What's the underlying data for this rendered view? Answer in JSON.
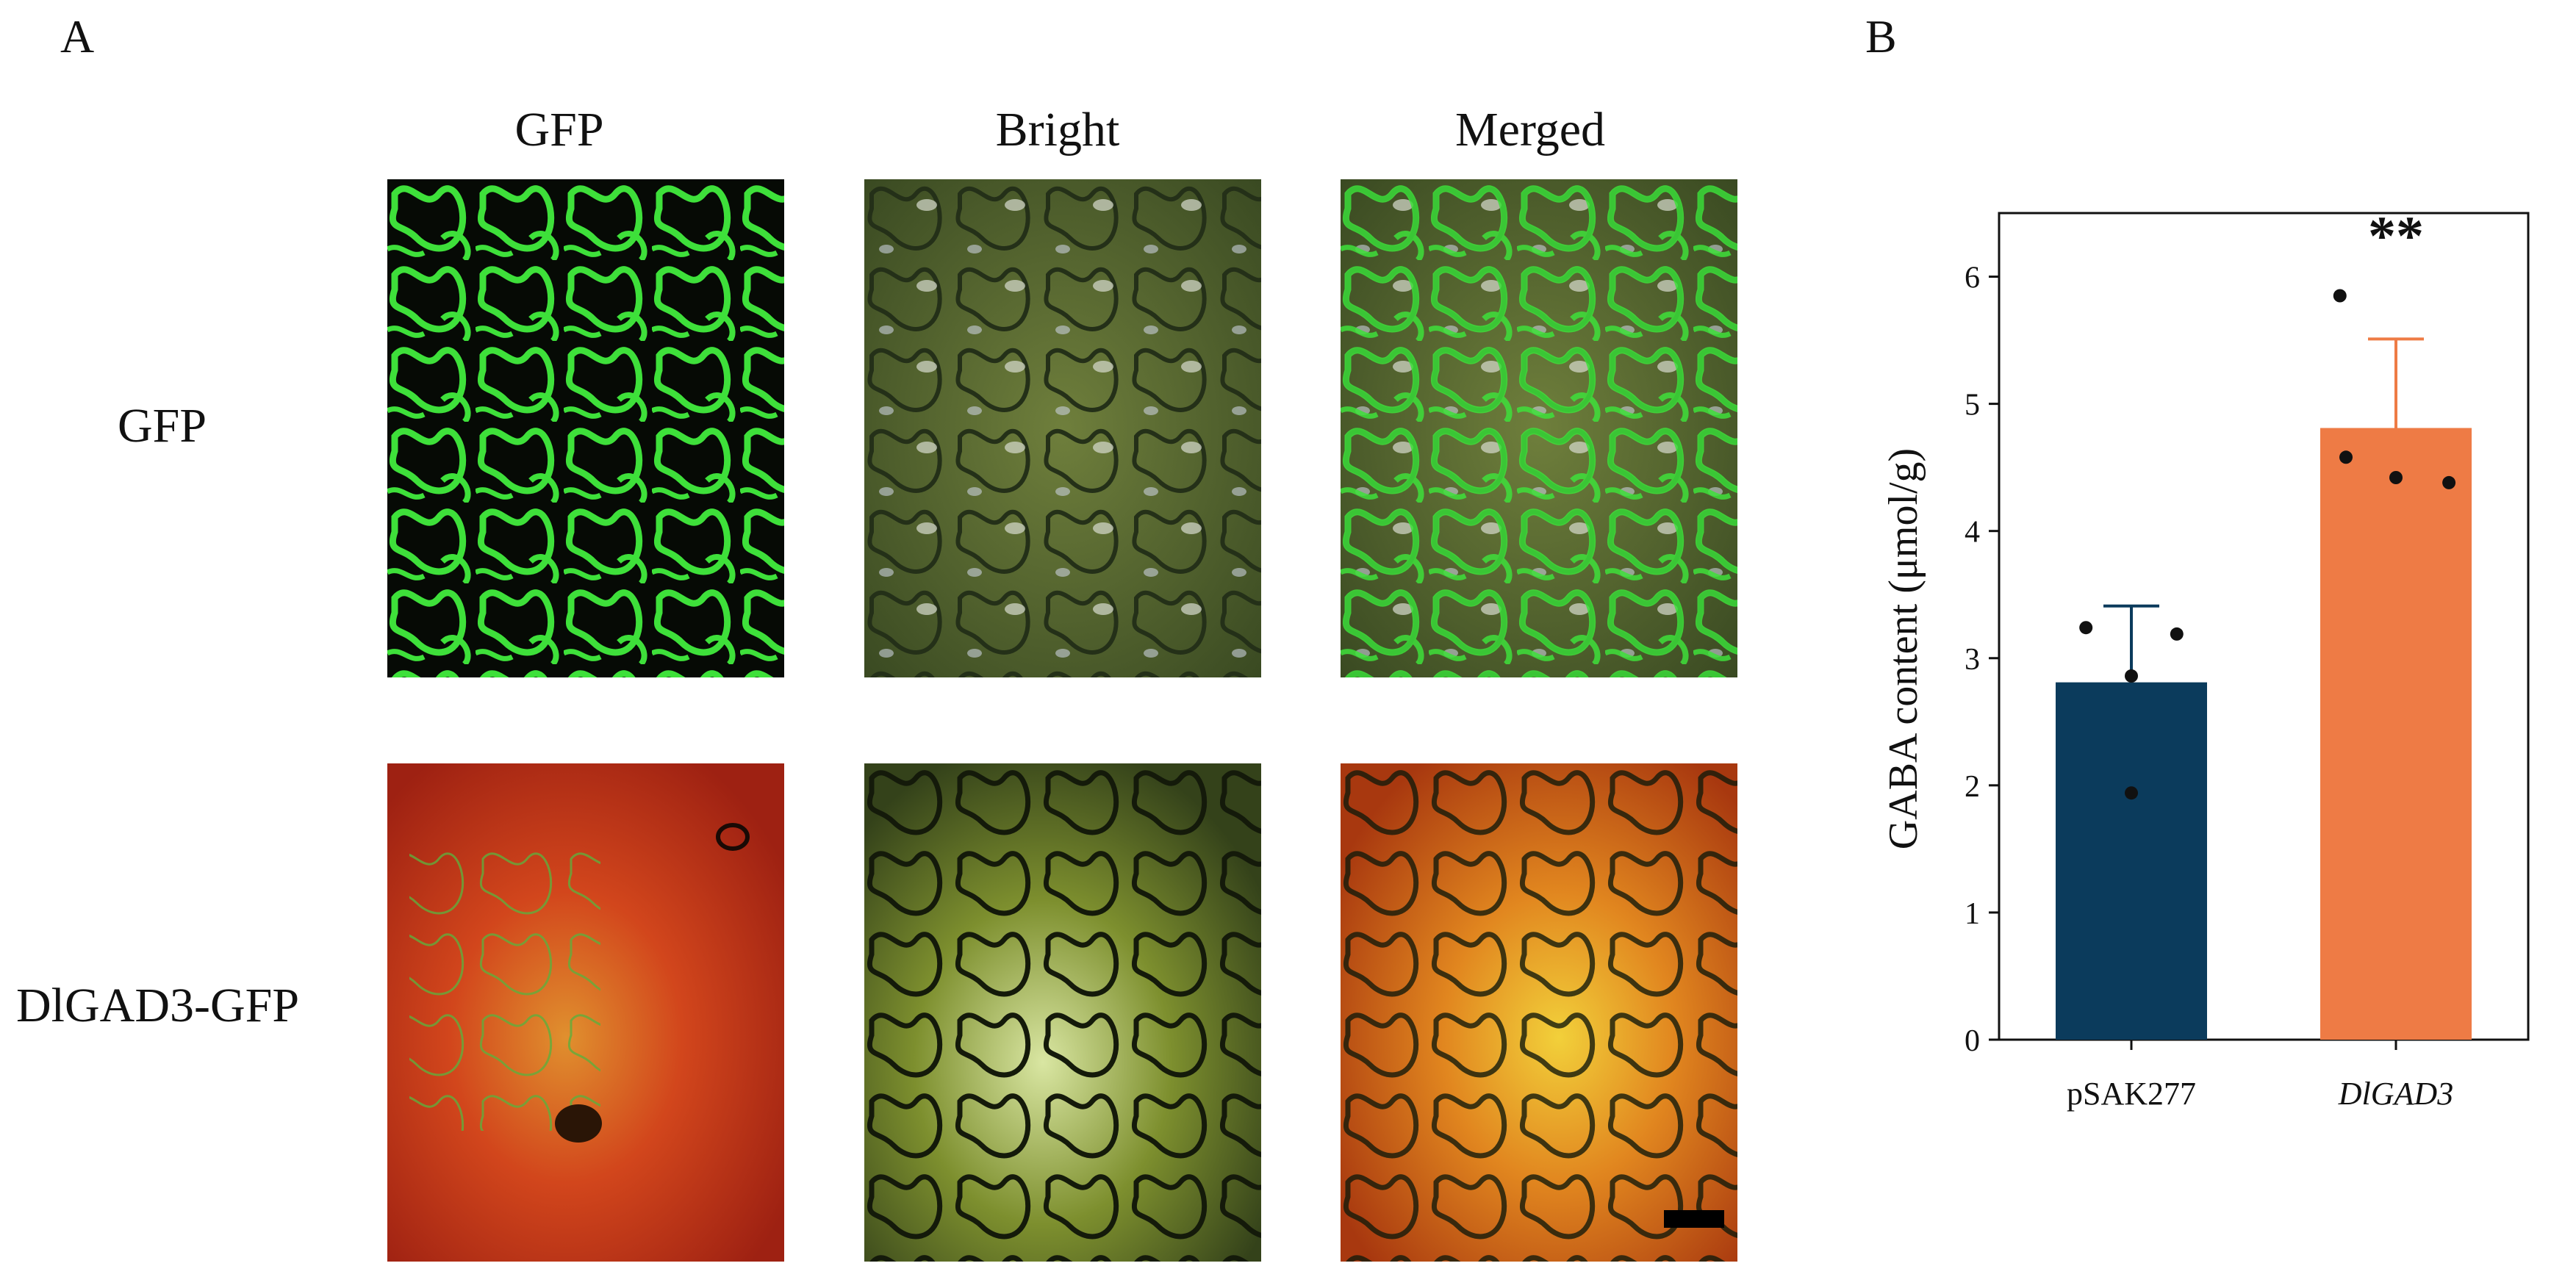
{
  "panel_a": {
    "letter": "A",
    "columns": [
      "GFP",
      "Bright",
      "Merged"
    ],
    "rows": [
      "GFP",
      "DlGAD3-GFP"
    ]
  },
  "panel_b": {
    "letter": "B"
  },
  "chart_data": {
    "type": "bar",
    "title": "",
    "xlabel": "",
    "ylabel": "GABA content (μmol/g)",
    "ylim": [
      0,
      6.5
    ],
    "yticks": [
      0,
      1,
      2,
      3,
      4,
      5,
      6
    ],
    "categories": [
      "pSAK277",
      "DlGAD3"
    ],
    "category_styles": [
      "normal",
      "italic"
    ],
    "values": [
      2.81,
      4.81
    ],
    "errors": [
      0.6,
      0.7
    ],
    "points": [
      [
        3.24,
        3.19,
        2.86,
        1.94
      ],
      [
        5.85,
        4.58,
        4.42,
        4.38
      ]
    ],
    "significance": [
      "",
      "**"
    ],
    "colors": [
      "#0b3b5c",
      "#ee7b45"
    ],
    "grid": false
  }
}
